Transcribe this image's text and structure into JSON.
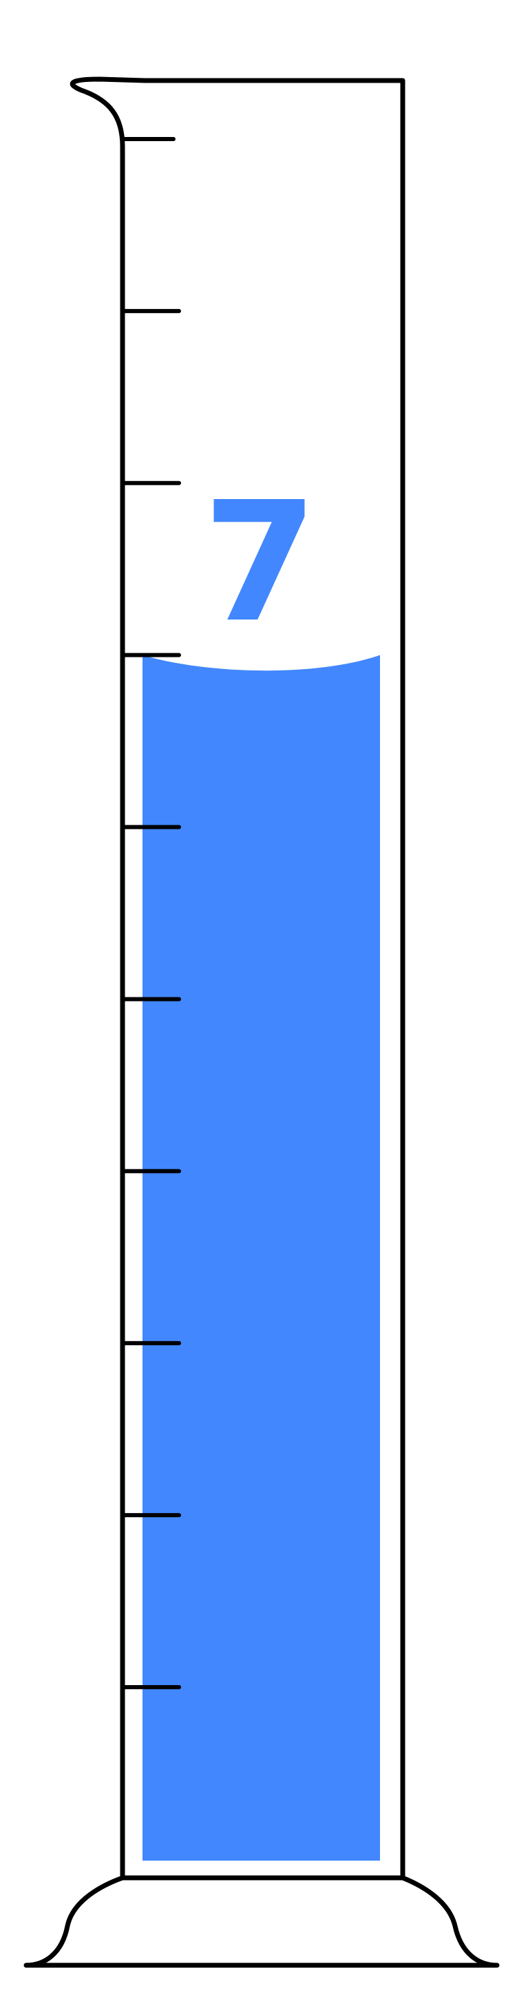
{
  "cylinder": {
    "reading_label": "7",
    "tick_count": 10,
    "liquid_level_ticks": 7,
    "liquid_color": "#4287FD",
    "outline_color": "#000000",
    "background_color": "#FFFFFF"
  }
}
